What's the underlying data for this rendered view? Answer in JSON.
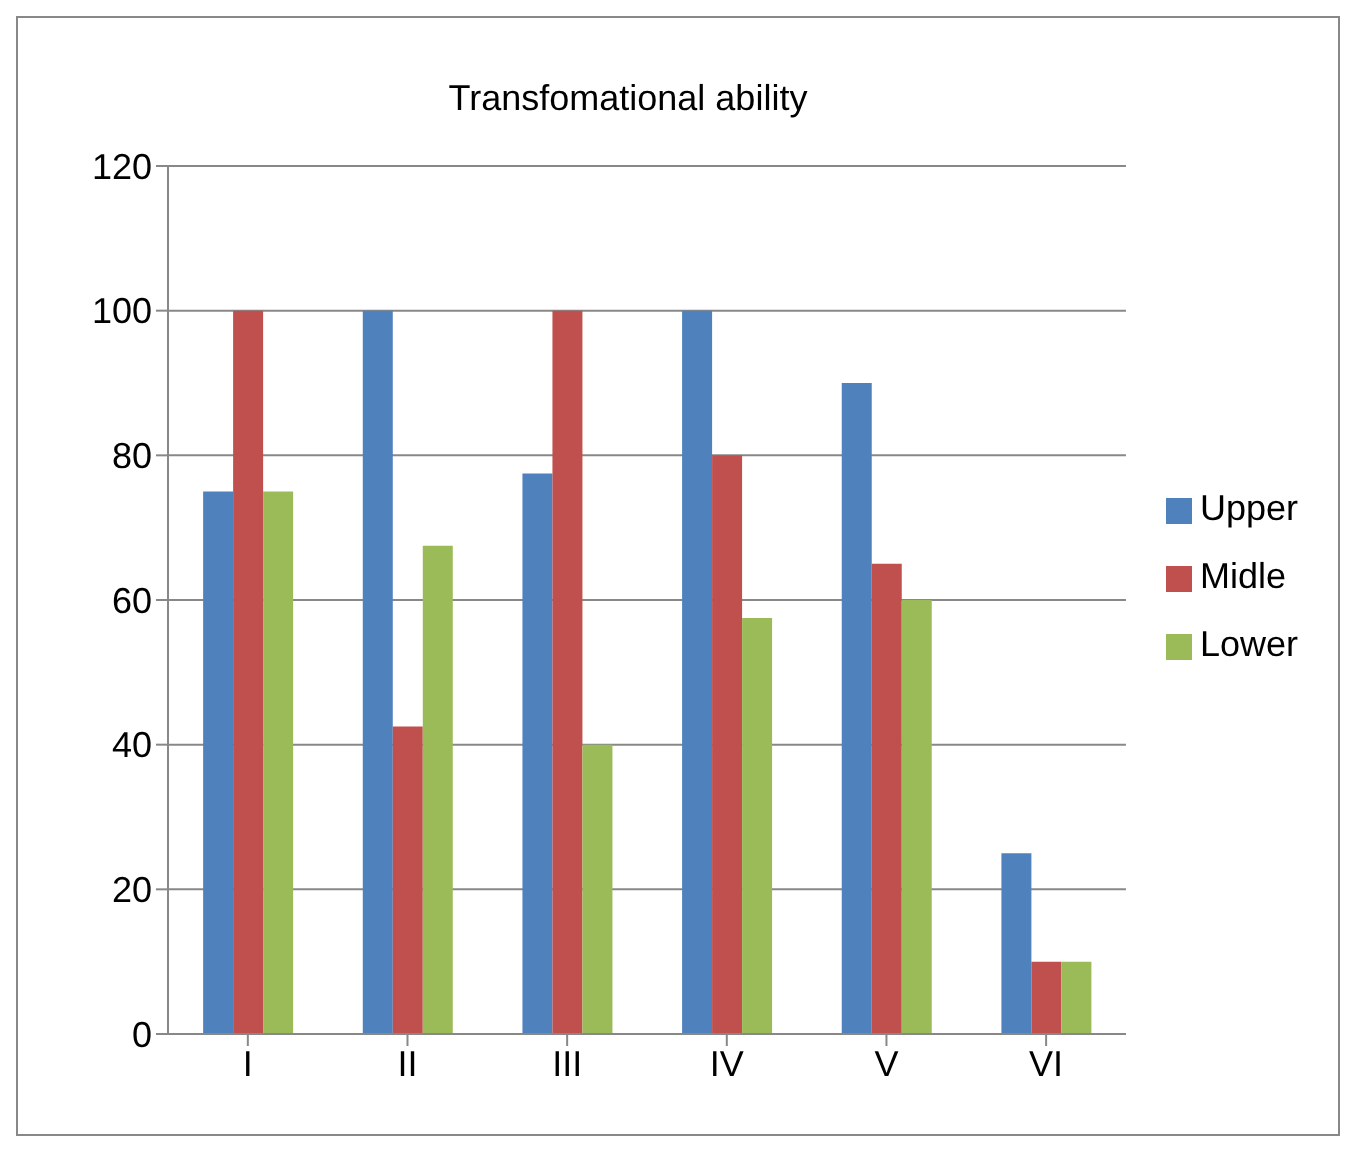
{
  "chart_data": {
    "type": "bar",
    "title": "Transfomational ability",
    "categories": [
      "I",
      "II",
      "III",
      "IV",
      "V",
      "VI"
    ],
    "series": [
      {
        "name": "Upper",
        "color": "#4f81bd",
        "values": [
          75,
          100,
          77.5,
          100,
          90,
          25
        ]
      },
      {
        "name": "Midle",
        "color": "#c0504d",
        "values": [
          100,
          42.5,
          100,
          80,
          65,
          10
        ]
      },
      {
        "name": "Lower",
        "color": "#9bbb59",
        "values": [
          75,
          67.5,
          40,
          57.5,
          60,
          10
        ]
      }
    ],
    "ylim": [
      0,
      120
    ],
    "yticks": [
      0,
      20,
      40,
      60,
      80,
      100,
      120
    ],
    "grid": "y",
    "legend": "right"
  }
}
